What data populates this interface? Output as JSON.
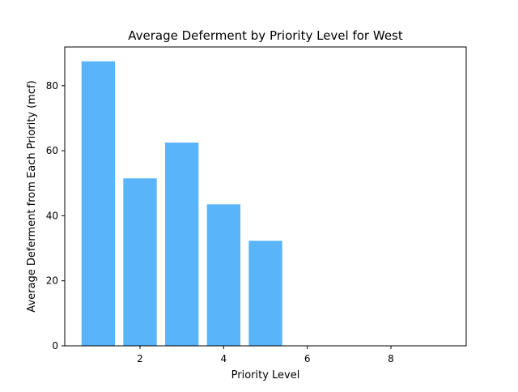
{
  "chart_data": {
    "type": "bar",
    "title": "Average Deferment by Priority Level for West",
    "xlabel": "Priority Level",
    "ylabel": "Average Deferment from Each Priority (mcf)",
    "x": [
      1,
      2,
      3,
      4,
      5
    ],
    "values": [
      87.5,
      51.5,
      62.5,
      43.5,
      32.3
    ],
    "xlim": [
      0.2,
      9.8
    ],
    "ylim": [
      0,
      91.9
    ],
    "xticks": [
      2,
      4,
      6,
      8
    ],
    "yticks": [
      0,
      20,
      40,
      60,
      80
    ],
    "bar_width": 0.8,
    "bar_color": "#5ab4fa",
    "grid": false,
    "legend": "none"
  }
}
